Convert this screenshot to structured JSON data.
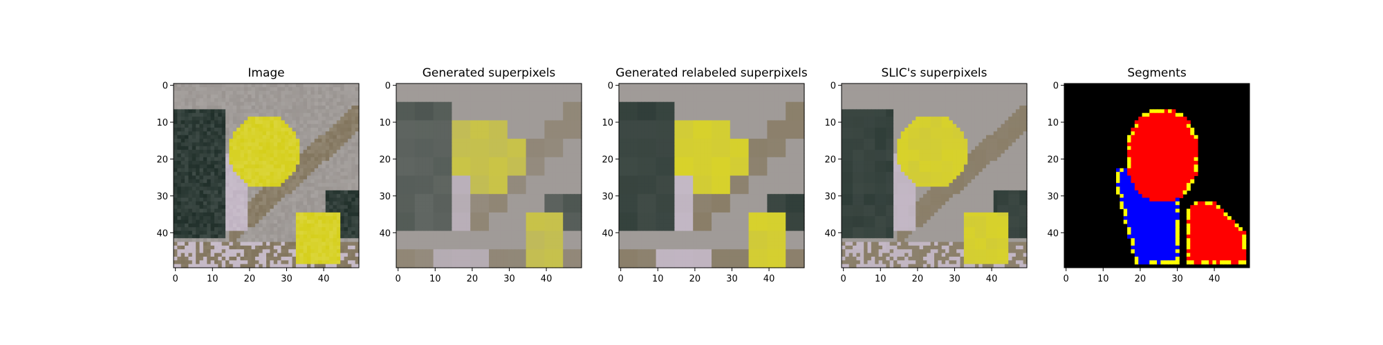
{
  "figure": {
    "panels": [
      {
        "title": "Image",
        "kind": "image",
        "xticks": [
          "0",
          "10",
          "20",
          "30",
          "40"
        ],
        "yticks": [
          "0",
          "10",
          "20",
          "30",
          "40"
        ]
      },
      {
        "title": "Generated superpixels",
        "kind": "superpixels",
        "xticks": [
          "0",
          "10",
          "20",
          "30",
          "40"
        ],
        "yticks": [
          "0",
          "10",
          "20",
          "30",
          "40"
        ]
      },
      {
        "title": "Generated relabeled superpixels",
        "kind": "relabeled",
        "xticks": [
          "0",
          "10",
          "20",
          "30",
          "40"
        ],
        "yticks": [
          "0",
          "10",
          "20",
          "30",
          "40"
        ]
      },
      {
        "title": "SLIC's superpixels",
        "kind": "slic",
        "xticks": [
          "0",
          "10",
          "20",
          "30",
          "40"
        ],
        "yticks": [
          "0",
          "10",
          "20",
          "30",
          "40"
        ]
      },
      {
        "title": "Segments",
        "kind": "segments",
        "xticks": [
          "0",
          "10",
          "20",
          "30",
          "40"
        ],
        "yticks": [
          "0",
          "10",
          "20",
          "30",
          "40"
        ]
      }
    ],
    "grid_size": 50,
    "colors": {
      "background_gray": "#a09b98",
      "parrot_yellow": "#d8d22a",
      "dark_green": "#2f3d38",
      "pale_lilac": "#c4b8c6",
      "branch_brown": "#8a7e68",
      "segment_red": "#ff0000",
      "segment_blue": "#0000ff",
      "segment_yellow": "#ffff00",
      "segment_black": "#000000"
    }
  }
}
